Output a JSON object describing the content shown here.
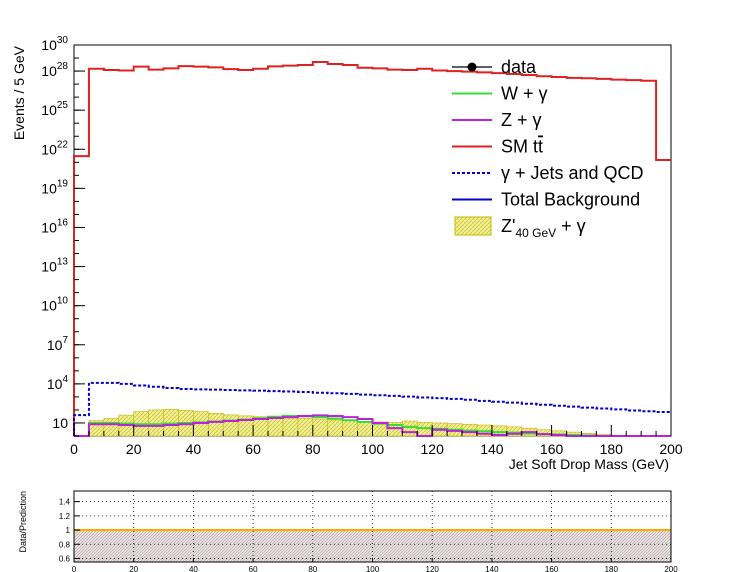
{
  "chart_data": [
    {
      "type": "histogram",
      "xlabel": "Jet Soft Drop Mass (GeV)",
      "ylabel": "Events / 5 GeV",
      "xlim": [
        0,
        200
      ],
      "ylim": [
        1,
        1e+30
      ],
      "log_y": true,
      "bin_width": 5,
      "xticks": [
        0,
        20,
        40,
        60,
        80,
        100,
        120,
        140,
        160,
        180,
        200
      ],
      "yticks": [
        {
          "mantissa": "10",
          "exp": ""
        },
        {
          "mantissa": "10",
          "exp": "4"
        },
        {
          "mantissa": "10",
          "exp": "7"
        },
        {
          "mantissa": "10",
          "exp": "10"
        },
        {
          "mantissa": "10",
          "exp": "13"
        },
        {
          "mantissa": "10",
          "exp": "16"
        },
        {
          "mantissa": "10",
          "exp": "19"
        },
        {
          "mantissa": "10",
          "exp": "22"
        },
        {
          "mantissa": "10",
          "exp": "25"
        },
        {
          "mantissa": "10",
          "exp": "28"
        },
        {
          "mantissa": "10",
          "exp": "30"
        }
      ],
      "legend_position": "top-right",
      "legend": [
        {
          "text": "data",
          "style": "marker",
          "color": "#000000"
        },
        {
          "text": "W + γ",
          "style": "line",
          "color": "#33dd33"
        },
        {
          "text": "Z + γ",
          "style": "line",
          "color": "#bb22dd"
        },
        {
          "text": "SM t",
          "text_bar": "t",
          "style": "line",
          "color": "#dd2222"
        },
        {
          "text": "γ + Jets and QCD",
          "style": "dashed",
          "color": "#0000cc"
        },
        {
          "text": "Total Background",
          "style": "line",
          "color": "#0000cc"
        },
        {
          "text": "Z'",
          "sub": "40 GeV",
          "text_after": " + γ",
          "style": "fill",
          "color": "#eeee99"
        }
      ],
      "series": [
        {
          "name": "SM tt̄",
          "color": "#dd2222",
          "values": [
            3e+21,
            1.5e+28,
            1.2e+28,
            1.1e+28,
            2.2e+28,
            1.3e+28,
            1.6e+28,
            2.4e+28,
            2.2e+28,
            1.9e+28,
            1.4e+28,
            1.2e+28,
            1.5e+28,
            2.3e+28,
            2.6e+28,
            2.9e+28,
            5e+28,
            3.5e+28,
            2.9e+28,
            1.8e+28,
            1.6e+28,
            1.3e+28,
            1.2e+28,
            1.5e+28,
            1.1e+28,
            1e+28,
            9e+27,
            8e+27,
            7e+27,
            6e+27,
            5e+27,
            4e+27,
            3.5e+27,
            3e+27,
            2.8e+27,
            2.5e+27,
            2.2e+27,
            2e+27,
            1.8e+27,
            1.5e+21
          ]
        },
        {
          "name": "γ + Jets and QCD",
          "color": "#0000cc",
          "values": [
            40,
            12000,
            12000,
            10000,
            7500,
            6000,
            4800,
            4000,
            3800,
            3600,
            3400,
            3200,
            3000,
            2800,
            2600,
            2400,
            2100,
            1900,
            1700,
            1500,
            1350,
            1200,
            1050,
            900,
            800,
            700,
            600,
            500,
            420,
            360,
            300,
            250,
            210,
            180,
            150,
            130,
            110,
            90,
            80,
            70
          ]
        },
        {
          "name": "Z'40 GeV + γ",
          "color": "#eeee99",
          "values": [
            1,
            15,
            22,
            40,
            75,
            100,
            110,
            95,
            75,
            55,
            42,
            35,
            30,
            26,
            24,
            22,
            20,
            17,
            15,
            13,
            12,
            11,
            14,
            11,
            10,
            9,
            8,
            7,
            6,
            5,
            4,
            3,
            2.5,
            2,
            1.6,
            1.3,
            1.1,
            1,
            1,
            1
          ]
        },
        {
          "name": "W + γ",
          "color": "#33dd33",
          "values": [
            1,
            10,
            10,
            9,
            8,
            8,
            9,
            10,
            11,
            13,
            15,
            18,
            23,
            30,
            35,
            32,
            28,
            22,
            16,
            12,
            9,
            7,
            5,
            4,
            3.5,
            3,
            2.6,
            2.3,
            2,
            1.8,
            1.6,
            1.4,
            1.3,
            1.2,
            1.1,
            1,
            1,
            1,
            1,
            1
          ]
        },
        {
          "name": "Z + γ",
          "color": "#bb22dd",
          "values": [
            1,
            8,
            8,
            7,
            6,
            6,
            7,
            8,
            10,
            12,
            14,
            17,
            20,
            24,
            28,
            34,
            38,
            34,
            28,
            20,
            10,
            4,
            2,
            1,
            3,
            2.5,
            2,
            1.5,
            1.2,
            1.5,
            2,
            1.4,
            1.2,
            1,
            1,
            1,
            1,
            1,
            1,
            1
          ]
        }
      ]
    },
    {
      "type": "ratio",
      "ylabel": "Data/Prediction",
      "xlim": [
        0,
        200
      ],
      "ylim": [
        0.55,
        1.55
      ],
      "xticks": [
        0,
        20,
        40,
        60,
        80,
        100,
        120,
        140,
        160,
        180,
        200
      ],
      "yticks": [
        "0.6",
        "0.8",
        "1",
        "1.2",
        "1.4"
      ],
      "ratio_line": 1.0,
      "line_color": "#ffaa00",
      "band": [
        0.55,
        1.0
      ],
      "grid": true
    }
  ]
}
